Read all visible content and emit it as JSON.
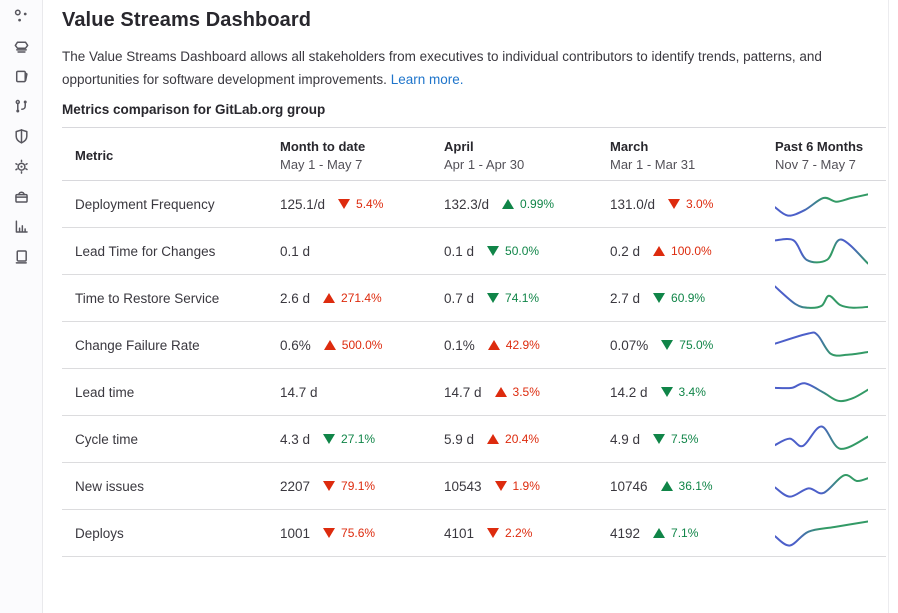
{
  "sidebar": {
    "icons": [
      {
        "name": "circles-icon"
      },
      {
        "name": "server-icon"
      },
      {
        "name": "document-icon"
      },
      {
        "name": "branch-icon"
      },
      {
        "name": "shield-icon"
      },
      {
        "name": "gear-icon"
      },
      {
        "name": "package-icon"
      },
      {
        "name": "chart-icon"
      },
      {
        "name": "book-icon"
      }
    ]
  },
  "header": {
    "title": "Value Streams Dashboard",
    "description": "The Value Streams Dashboard allows all stakeholders from executives to individual contributors to identify trends, patterns, and opportunities for software development improvements.",
    "learn_more": "Learn more.",
    "section_heading": "Metrics comparison for GitLab.org group"
  },
  "colors": {
    "bad": "#dd2b0e",
    "good": "#108548",
    "link": "#1f75cb",
    "spark_blue": "#4c5fc9",
    "spark_green": "#339a66"
  },
  "table": {
    "columns": [
      {
        "label": "Metric",
        "sub": ""
      },
      {
        "label": "Month to date",
        "sub": "May 1 - May 7"
      },
      {
        "label": "April",
        "sub": "Apr 1 - Apr 30"
      },
      {
        "label": "March",
        "sub": "Mar 1 - Mar 31"
      },
      {
        "label": "Past 6 Months",
        "sub": "Nov 7 - May 7"
      }
    ],
    "rows": [
      {
        "metric": "Deployment Frequency",
        "cells": [
          {
            "value": "125.1/d",
            "delta": "5.4%",
            "dir": "down",
            "tone": "bad"
          },
          {
            "value": "132.3/d",
            "delta": "0.99%",
            "dir": "up",
            "tone": "good"
          },
          {
            "value": "131.0/d",
            "delta": "3.0%",
            "dir": "down",
            "tone": "bad"
          }
        ],
        "sparkline": {
          "points": [
            [
              0,
              23
            ],
            [
              14,
              32
            ],
            [
              32,
              26
            ],
            [
              52,
              13
            ],
            [
              66,
              17
            ],
            [
              82,
              13
            ],
            [
              100,
              9
            ]
          ],
          "stops": [
            [
              0,
              "blue"
            ],
            [
              0.28,
              "blue"
            ],
            [
              0.55,
              "green"
            ],
            [
              1,
              "green"
            ]
          ]
        }
      },
      {
        "metric": "Lead Time for Changes",
        "cells": [
          {
            "value": "0.1 d",
            "delta": null
          },
          {
            "value": "0.1 d",
            "delta": "50.0%",
            "dir": "down",
            "tone": "good"
          },
          {
            "value": "0.2 d",
            "delta": "100.0%",
            "dir": "up",
            "tone": "bad"
          }
        ],
        "sparkline": {
          "points": [
            [
              0,
              8
            ],
            [
              20,
              8
            ],
            [
              34,
              29
            ],
            [
              56,
              29
            ],
            [
              71,
              7
            ],
            [
              100,
              33
            ]
          ],
          "stops": [
            [
              0,
              "blue"
            ],
            [
              0.28,
              "blue"
            ],
            [
              0.45,
              "green"
            ],
            [
              0.62,
              "green"
            ],
            [
              0.73,
              "blue"
            ],
            [
              0.82,
              "blue"
            ],
            [
              1,
              "green"
            ]
          ]
        }
      },
      {
        "metric": "Time to Restore Service",
        "cells": [
          {
            "value": "2.6 d",
            "delta": "271.4%",
            "dir": "up",
            "tone": "bad"
          },
          {
            "value": "0.7 d",
            "delta": "74.1%",
            "dir": "down",
            "tone": "good"
          },
          {
            "value": "2.7 d",
            "delta": "60.9%",
            "dir": "down",
            "tone": "good"
          }
        ],
        "sparkline": {
          "points": [
            [
              0,
              7
            ],
            [
              22,
              26
            ],
            [
              36,
              30
            ],
            [
              50,
              28
            ],
            [
              58,
              17
            ],
            [
              70,
              27
            ],
            [
              84,
              30
            ],
            [
              100,
              29
            ]
          ],
          "stops": [
            [
              0,
              "blue"
            ],
            [
              0.12,
              "blue"
            ],
            [
              0.4,
              "green"
            ],
            [
              1,
              "green"
            ]
          ]
        }
      },
      {
        "metric": "Change Failure Rate",
        "cells": [
          {
            "value": "0.6%",
            "delta": "500.0%",
            "dir": "up",
            "tone": "bad"
          },
          {
            "value": "0.1%",
            "delta": "42.9%",
            "dir": "up",
            "tone": "bad"
          },
          {
            "value": "0.07%",
            "delta": "75.0%",
            "dir": "down",
            "tone": "good"
          }
        ],
        "sparkline": {
          "points": [
            [
              0,
              18
            ],
            [
              36,
              7
            ],
            [
              46,
              9
            ],
            [
              60,
              29
            ],
            [
              78,
              30
            ],
            [
              100,
              27
            ]
          ],
          "stops": [
            [
              0,
              "blue"
            ],
            [
              0.42,
              "blue"
            ],
            [
              0.62,
              "green"
            ],
            [
              1,
              "green"
            ]
          ]
        }
      },
      {
        "metric": "Lead time",
        "cells": [
          {
            "value": "14.7 d",
            "delta": null
          },
          {
            "value": "14.7 d",
            "delta": "3.5%",
            "dir": "up",
            "tone": "bad"
          },
          {
            "value": "14.2 d",
            "delta": "3.4%",
            "dir": "down",
            "tone": "good"
          }
        ],
        "sparkline": {
          "points": [
            [
              0,
              15
            ],
            [
              18,
              15
            ],
            [
              32,
              10
            ],
            [
              52,
              20
            ],
            [
              68,
              29
            ],
            [
              84,
              26
            ],
            [
              100,
              17
            ]
          ],
          "stops": [
            [
              0,
              "blue"
            ],
            [
              0.38,
              "blue"
            ],
            [
              0.6,
              "green"
            ],
            [
              1,
              "green"
            ]
          ]
        }
      },
      {
        "metric": "Cycle time",
        "cells": [
          {
            "value": "4.3 d",
            "delta": "27.1%",
            "dir": "down",
            "tone": "good"
          },
          {
            "value": "5.9 d",
            "delta": "20.4%",
            "dir": "up",
            "tone": "bad"
          },
          {
            "value": "4.9 d",
            "delta": "7.5%",
            "dir": "down",
            "tone": "good"
          }
        ],
        "sparkline": {
          "points": [
            [
              0,
              26
            ],
            [
              16,
              19
            ],
            [
              30,
              27
            ],
            [
              50,
              6
            ],
            [
              70,
              30
            ],
            [
              100,
              17
            ]
          ],
          "stops": [
            [
              0,
              "blue"
            ],
            [
              0.5,
              "blue"
            ],
            [
              0.7,
              "green"
            ],
            [
              1,
              "green"
            ]
          ]
        }
      },
      {
        "metric": "New issues",
        "cells": [
          {
            "value": "2207",
            "delta": "79.1%",
            "dir": "down",
            "tone": "bad"
          },
          {
            "value": "10543",
            "delta": "1.9%",
            "dir": "down",
            "tone": "bad"
          },
          {
            "value": "10746",
            "delta": "36.1%",
            "dir": "up",
            "tone": "good"
          }
        ],
        "sparkline": {
          "points": [
            [
              0,
              21
            ],
            [
              16,
              31
            ],
            [
              36,
              22
            ],
            [
              52,
              27
            ],
            [
              74,
              8
            ],
            [
              88,
              14
            ],
            [
              100,
              11
            ]
          ],
          "stops": [
            [
              0,
              "blue"
            ],
            [
              0.5,
              "blue"
            ],
            [
              0.72,
              "green"
            ],
            [
              1,
              "green"
            ]
          ]
        }
      },
      {
        "metric": "Deploys",
        "cells": [
          {
            "value": "1001",
            "delta": "75.6%",
            "dir": "down",
            "tone": "bad"
          },
          {
            "value": "4101",
            "delta": "2.2%",
            "dir": "down",
            "tone": "bad"
          },
          {
            "value": "4192",
            "delta": "7.1%",
            "dir": "up",
            "tone": "good"
          }
        ],
        "sparkline": {
          "points": [
            [
              0,
              23
            ],
            [
              16,
              33
            ],
            [
              36,
              18
            ],
            [
              64,
              13
            ],
            [
              100,
              7
            ]
          ],
          "stops": [
            [
              0,
              "blue"
            ],
            [
              0.22,
              "blue"
            ],
            [
              0.5,
              "green"
            ],
            [
              1,
              "green"
            ]
          ]
        }
      }
    ]
  }
}
